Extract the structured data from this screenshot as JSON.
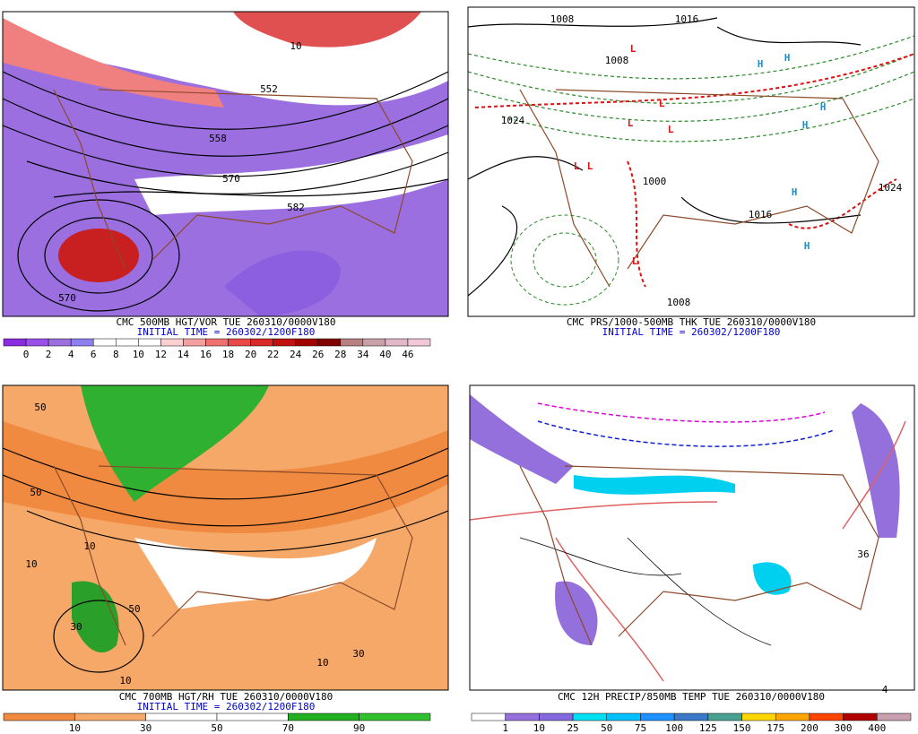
{
  "panels": [
    {
      "caption": "CMC 500MB HGT/VOR TUE 260310/0000V180",
      "initial_time": "INITIAL TIME = 260302/1200F180",
      "contour_labels": [
        "552",
        "558",
        "570",
        "570",
        "582",
        "10"
      ],
      "colorbar": {
        "labels": [
          0,
          2,
          4,
          6,
          8,
          10,
          12,
          14,
          16,
          18,
          20,
          22,
          24,
          26,
          28,
          34,
          40,
          46
        ],
        "colors": [
          "#8a2be2",
          "#9a50e8",
          "#9b6fe0",
          "#8c7ff0",
          "#ffffff",
          "#ffffff",
          "#ffffff",
          "#fbd0d0",
          "#f5a0a0",
          "#f07070",
          "#e84848",
          "#d82828",
          "#c01010",
          "#a00000",
          "#800000",
          "#b88080",
          "#c8a0a8",
          "#e0b8c8",
          "#f0c8d8"
        ]
      }
    },
    {
      "caption": "CMC PRS/1000-500MB THK TUE 260310/0000V180",
      "initial_time": "INITIAL TIME = 260302/1200F180",
      "contour_labels": [
        "1008",
        "1008",
        "1024",
        "1016",
        "1000",
        "1016",
        "1024",
        "1008",
        "L",
        "L",
        "L",
        "L",
        "L",
        "L",
        "L",
        "H",
        "H",
        "H",
        "H",
        "H",
        "H"
      ]
    },
    {
      "caption": "CMC 700MB HGT/RH TUE 260310/0000V180",
      "initial_time": "INITIAL TIME = 260302/1200F180",
      "contour_labels": [
        "50",
        "50",
        "10",
        "30",
        "10",
        "50",
        "10",
        "30",
        "10"
      ],
      "colorbar": {
        "labels": [
          10,
          30,
          50,
          70,
          90
        ],
        "colors": [
          "#f08a40",
          "#f5a868",
          "#ffffff",
          "#ffffff",
          "#22b022",
          "#30c030"
        ]
      }
    },
    {
      "caption": "CMC 12H PRECIP/850MB TEMP TUE 260310/0000V180",
      "contour_labels": [
        "36",
        "4"
      ],
      "colorbar": {
        "labels": [
          1,
          10,
          25,
          50,
          75,
          100,
          125,
          150,
          175,
          200,
          300,
          400
        ],
        "colors": [
          "#ffffff",
          "#9370db",
          "#8468e0",
          "#00e0f0",
          "#00c0ff",
          "#1e90ff",
          "#3c78c8",
          "#48a090",
          "#ffd700",
          "#ffa500",
          "#ff4500",
          "#b00000",
          "#c8a0b0"
        ]
      }
    }
  ]
}
